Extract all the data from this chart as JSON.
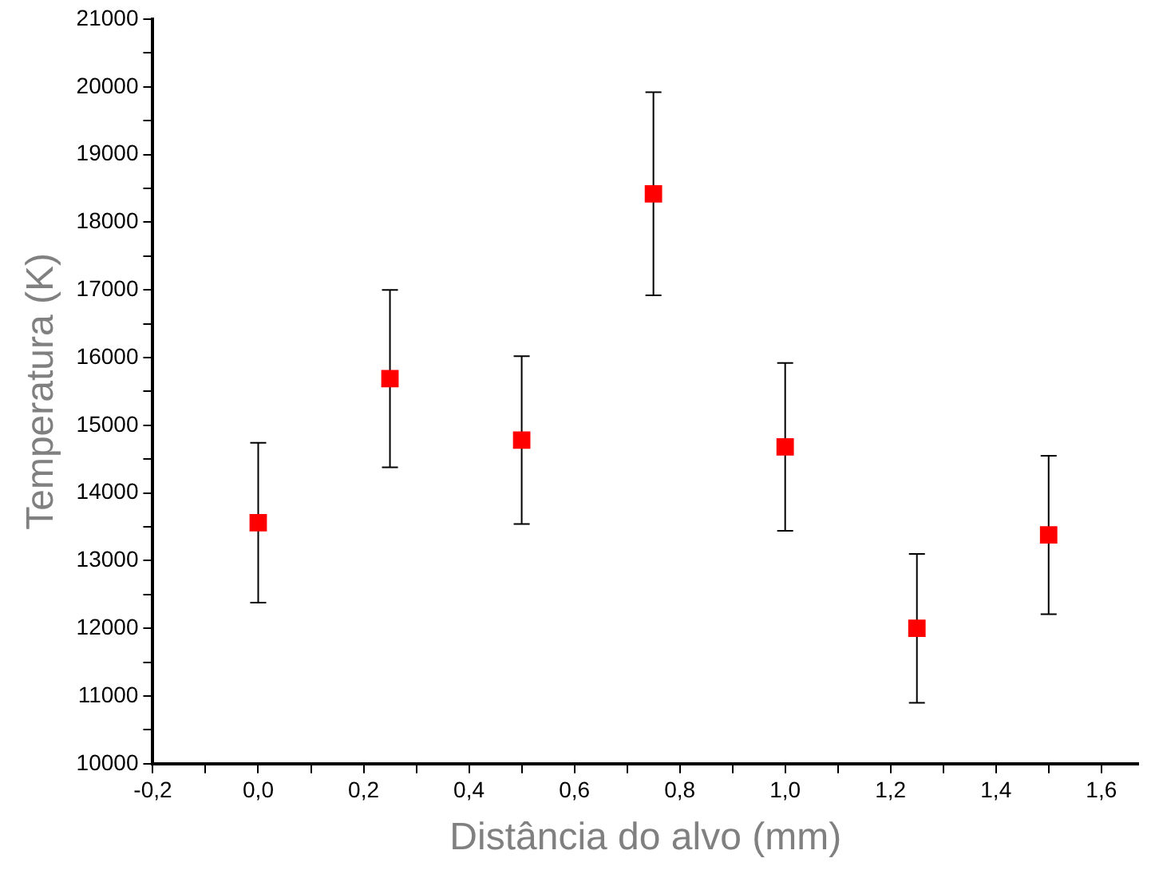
{
  "chart_data": {
    "type": "scatter",
    "xlabel": "Distância do alvo (mm)",
    "ylabel": "Temperatura (K)",
    "x": [
      0,
      0.25,
      0.5,
      0.75,
      1.0,
      1.25,
      1.5
    ],
    "series": [
      {
        "color": "#ff0000",
        "values": [
          13560,
          15690,
          14780,
          18420,
          14680,
          12000,
          13380
        ],
        "errors": [
          1180,
          1310,
          1240,
          1500,
          1240,
          1100,
          1170
        ]
      }
    ],
    "marker": "square",
    "grid": false,
    "legend": false,
    "xlim": [
      -0.2,
      1.67
    ],
    "xticks": [
      {
        "value": -0.2,
        "label": "-0,2"
      },
      {
        "value": -0.1,
        "label": null
      },
      {
        "value": 0,
        "label": "0,0"
      },
      {
        "value": 0.1,
        "label": null
      },
      {
        "value": 0.2,
        "label": "0,2"
      },
      {
        "value": 0.3,
        "label": null
      },
      {
        "value": 0.4,
        "label": "0,4"
      },
      {
        "value": 0.5,
        "label": null
      },
      {
        "value": 0.6,
        "label": "0,6"
      },
      {
        "value": 0.7,
        "label": null
      },
      {
        "value": 0.8,
        "label": "0,8"
      },
      {
        "value": 0.9,
        "label": null
      },
      {
        "value": 1.0,
        "label": "1,0"
      },
      {
        "value": 1.1,
        "label": null
      },
      {
        "value": 1.2,
        "label": "1,2"
      },
      {
        "value": 1.3,
        "label": null
      },
      {
        "value": 1.4,
        "label": "1,4"
      },
      {
        "value": 1.5,
        "label": null
      },
      {
        "value": 1.6,
        "label": "1,6"
      }
    ],
    "ylim": [
      10000,
      21000
    ],
    "yticks": [
      10000,
      {
        "value": 10500,
        "label": null
      },
      11000,
      {
        "value": 11500,
        "label": null
      },
      12000,
      {
        "value": 12500,
        "label": null
      },
      13000,
      {
        "value": 13500,
        "label": null
      },
      14000,
      {
        "value": 14500,
        "label": null
      },
      15000,
      {
        "value": 15500,
        "label": null
      },
      16000,
      {
        "value": 16500,
        "label": null
      },
      17000,
      {
        "value": 17500,
        "label": null
      },
      18000,
      {
        "value": 18500,
        "label": null
      },
      19000,
      {
        "value": 19500,
        "label": null
      },
      20000,
      {
        "value": 20500,
        "label": null
      },
      21000
    ]
  }
}
